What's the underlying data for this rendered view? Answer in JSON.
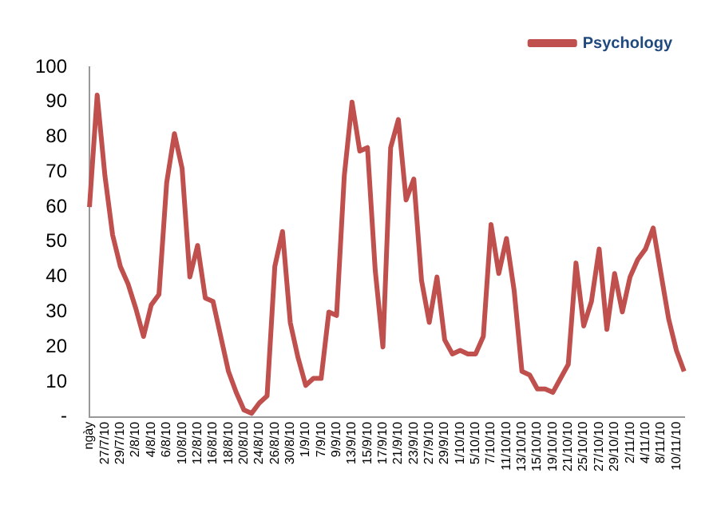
{
  "chart_data": {
    "type": "line",
    "categories": [
      "ngày",
      null,
      "27/7/10",
      null,
      "29/7/10",
      null,
      "2/8/10",
      null,
      "4/8/10",
      null,
      "6/8/10",
      null,
      "10/8/10",
      null,
      "12/8/10",
      null,
      "16/8/10",
      null,
      "18/8/10",
      null,
      "20/8/10",
      null,
      "24/8/10",
      null,
      "26/8/10",
      null,
      "30/8/10",
      null,
      "1/9/10",
      null,
      "7/9/10",
      null,
      "9/9/10",
      null,
      "13/9/10",
      null,
      "15/9/10",
      null,
      "17/9/10",
      null,
      "21/9/10",
      null,
      "23/9/10",
      null,
      "27/9/10",
      null,
      "29/9/10",
      null,
      "1/10/10",
      null,
      "5/10/10",
      null,
      "7/10/10",
      null,
      "11/10/10",
      null,
      "13/10/10",
      null,
      "15/10/10",
      null,
      "19/10/10",
      null,
      "21/10/10",
      null,
      "25/10/10",
      null,
      "27/10/10",
      null,
      "29/10/10",
      null,
      "2/11/10",
      null,
      "4/11/10",
      null,
      "8/11/10",
      null,
      "10/11/10",
      null
    ],
    "series": [
      {
        "name": "Psychology",
        "color": "#c0504d",
        "values": [
          60,
          92,
          69,
          52,
          43,
          38,
          31,
          23,
          32,
          35,
          67,
          81,
          71,
          40,
          49,
          34,
          33,
          23,
          13,
          7,
          2,
          1,
          4,
          6,
          43,
          53,
          27,
          17,
          9,
          11,
          11,
          30,
          29,
          69,
          90,
          76,
          77,
          42,
          20,
          77,
          85,
          62,
          68,
          39,
          27,
          40,
          22,
          18,
          19,
          18,
          18,
          23,
          55,
          41,
          51,
          36,
          13,
          12,
          8,
          8,
          7,
          11,
          15,
          44,
          26,
          33,
          48,
          25,
          41,
          30,
          40,
          45,
          48,
          54,
          41,
          28,
          19,
          13
        ]
      }
    ],
    "ylim": [
      0,
      100
    ],
    "yticks": [
      {
        "value": 0,
        "label": "-"
      },
      10,
      20,
      30,
      40,
      50,
      60,
      70,
      80,
      90,
      100
    ],
    "grid": false,
    "legend": "top right",
    "marker": "none",
    "line_style": "solid"
  }
}
